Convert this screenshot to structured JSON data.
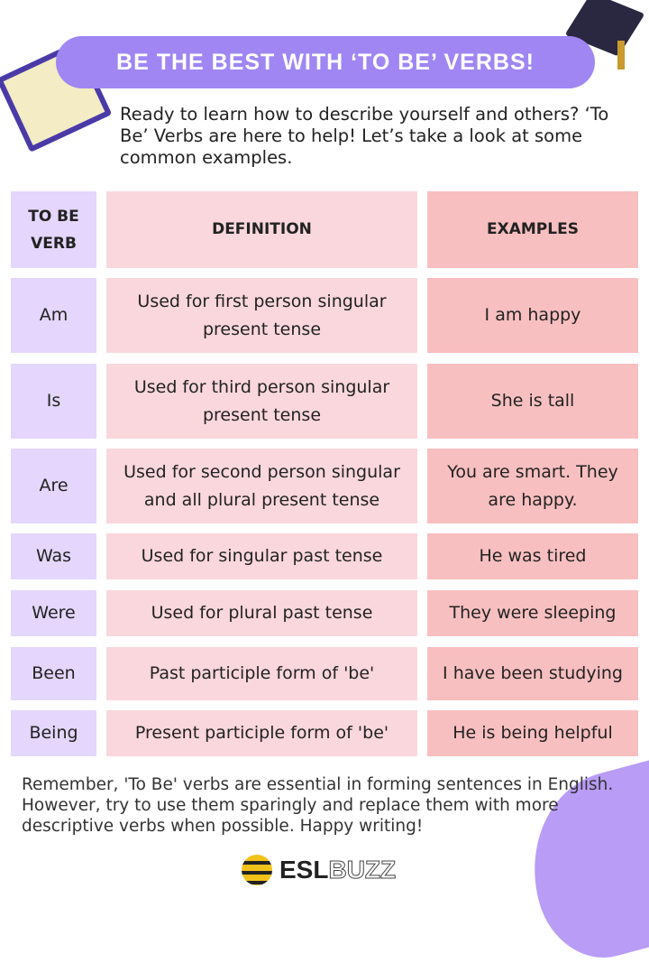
{
  "title": "BE THE BEST WITH ‘TO BE’ VERBS!",
  "intro": "Ready to learn how to describe yourself and others? ‘To Be’ Verbs are here to help! Let’s take a look at some common examples.",
  "table": {
    "headers": [
      "TO BE VERB",
      "DEFINITION",
      "EXAMPLES"
    ],
    "rows": [
      {
        "verb": "Am",
        "definition": "Used for first person singular present tense",
        "example": "I am happy"
      },
      {
        "verb": "Is",
        "definition": "Used for third person singular present tense",
        "example": "She is tall"
      },
      {
        "verb": "Are",
        "definition": "Used for second person singular and all plural present tense",
        "example": "You are smart. They are happy."
      },
      {
        "verb": "Was",
        "definition": "Used for singular past tense",
        "example": "He was tired"
      },
      {
        "verb": "Were",
        "definition": "Used for plural past tense",
        "example": "They were sleeping"
      },
      {
        "verb": "Been",
        "definition": "Past participle form of 'be'",
        "example": "I have been studying"
      },
      {
        "verb": "Being",
        "definition": "Present participle form of 'be'",
        "example": "He is being helpful"
      }
    ]
  },
  "outro": "Remember, 'To Be' verbs are essential in forming sentences in English. However, try to use them sparingly and replace them with more descriptive verbs when possible. Happy writing!",
  "logo": {
    "part1": "ESL",
    "part2": "BUZZ"
  },
  "colors": {
    "title_bg": "#9f86f3",
    "header_bg": "#c1a6fb",
    "verb_bg": "#e4d6fc",
    "definition_bg": "#fad7dc",
    "example_bg": "#f8bfc0"
  }
}
